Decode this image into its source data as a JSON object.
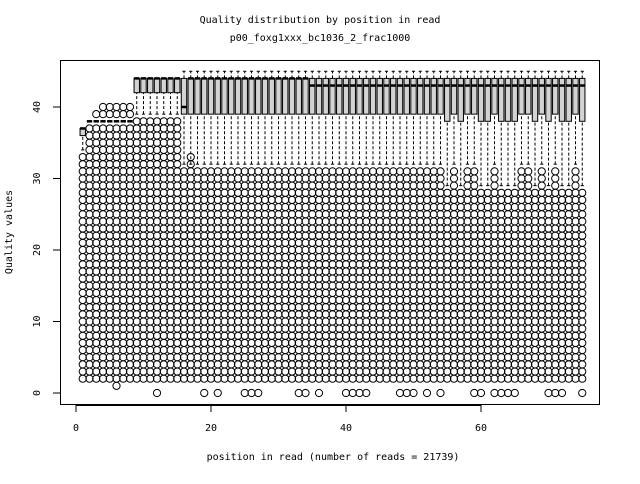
{
  "chart_data": {
    "type": "boxplot",
    "title": "Quality distribution by position in read",
    "subtitle": "p00_foxg1xxx_bc1036_2_frac1000",
    "xlabel": "position in read (number of reads = 21739)",
    "ylabel": "Quality values",
    "xlim": [
      -1.5,
      78.5
    ],
    "ylim": [
      -2,
      46
    ],
    "xticks": [
      0,
      20,
      40,
      60
    ],
    "yticks": [
      0,
      10,
      20,
      30,
      40
    ],
    "grid": false,
    "box_fill": "#d3d3d3",
    "positions_from": 1,
    "boxes_lo_q1_med_q3_hi": [
      [
        34,
        36,
        37,
        37,
        37
      ],
      [
        38,
        38,
        38,
        38,
        38
      ],
      [
        38,
        38,
        38,
        38,
        38
      ],
      [
        38,
        38,
        38,
        38,
        38
      ],
      [
        38,
        38,
        38,
        38,
        38
      ],
      [
        38,
        38,
        38,
        38,
        38
      ],
      [
        38,
        38,
        38,
        38,
        38
      ],
      [
        38,
        38,
        38,
        38,
        38
      ],
      [
        39,
        42,
        44,
        44,
        44
      ],
      [
        39,
        42,
        44,
        44,
        44
      ],
      [
        39,
        42,
        44,
        44,
        44
      ],
      [
        39,
        42,
        44,
        44,
        44
      ],
      [
        39,
        42,
        44,
        44,
        44
      ],
      [
        39,
        42,
        44,
        44,
        44
      ],
      [
        39,
        42,
        44,
        44,
        44
      ],
      [
        32,
        39,
        40,
        44,
        45
      ],
      [
        32,
        39,
        44,
        44,
        45
      ],
      [
        32,
        39,
        44,
        44,
        45
      ],
      [
        32,
        39,
        44,
        44,
        45
      ],
      [
        32,
        39,
        44,
        44,
        45
      ],
      [
        32,
        39,
        44,
        44,
        45
      ],
      [
        32,
        39,
        44,
        44,
        45
      ],
      [
        32,
        39,
        44,
        44,
        45
      ],
      [
        32,
        39,
        44,
        44,
        45
      ],
      [
        32,
        39,
        44,
        44,
        45
      ],
      [
        32,
        39,
        44,
        44,
        45
      ],
      [
        32,
        39,
        44,
        44,
        45
      ],
      [
        32,
        39,
        44,
        44,
        45
      ],
      [
        32,
        39,
        44,
        44,
        45
      ],
      [
        32,
        39,
        44,
        44,
        45
      ],
      [
        32,
        39,
        44,
        44,
        45
      ],
      [
        32,
        39,
        44,
        44,
        45
      ],
      [
        32,
        39,
        44,
        44,
        45
      ],
      [
        32,
        39,
        44,
        44,
        45
      ],
      [
        32,
        39,
        43,
        44,
        45
      ],
      [
        32,
        39,
        43,
        44,
        45
      ],
      [
        32,
        39,
        43,
        44,
        45
      ],
      [
        32,
        39,
        43,
        44,
        45
      ],
      [
        32,
        39,
        43,
        44,
        45
      ],
      [
        32,
        39,
        43,
        44,
        45
      ],
      [
        32,
        39,
        43,
        44,
        45
      ],
      [
        32,
        39,
        43,
        44,
        45
      ],
      [
        32,
        39,
        43,
        44,
        45
      ],
      [
        32,
        39,
        43,
        44,
        45
      ],
      [
        32,
        39,
        43,
        44,
        45
      ],
      [
        32,
        39,
        43,
        44,
        45
      ],
      [
        32,
        39,
        43,
        44,
        45
      ],
      [
        32,
        39,
        43,
        44,
        45
      ],
      [
        32,
        39,
        43,
        44,
        45
      ],
      [
        32,
        39,
        43,
        44,
        45
      ],
      [
        32,
        39,
        43,
        44,
        45
      ],
      [
        32,
        39,
        43,
        44,
        45
      ],
      [
        32,
        39,
        43,
        44,
        45
      ],
      [
        32,
        39,
        43,
        44,
        45
      ],
      [
        29,
        38,
        43,
        44,
        45
      ],
      [
        32,
        39,
        43,
        44,
        45
      ],
      [
        29,
        38,
        43,
        44,
        45
      ],
      [
        32,
        39,
        43,
        44,
        45
      ],
      [
        32,
        39,
        43,
        44,
        45
      ],
      [
        29,
        38,
        43,
        44,
        45
      ],
      [
        29,
        38,
        43,
        44,
        45
      ],
      [
        32,
        39,
        43,
        44,
        45
      ],
      [
        29,
        38,
        43,
        44,
        45
      ],
      [
        29,
        38,
        43,
        44,
        45
      ],
      [
        29,
        38,
        43,
        44,
        45
      ],
      [
        32,
        39,
        43,
        44,
        45
      ],
      [
        32,
        39,
        43,
        44,
        45
      ],
      [
        29,
        38,
        43,
        44,
        45
      ],
      [
        32,
        39,
        43,
        44,
        45
      ],
      [
        29,
        38,
        43,
        44,
        45
      ],
      [
        32,
        39,
        43,
        44,
        45
      ],
      [
        29,
        38,
        43,
        44,
        45
      ],
      [
        29,
        38,
        43,
        44,
        45
      ],
      [
        32,
        39,
        43,
        44,
        45
      ],
      [
        29,
        38,
        43,
        44,
        45
      ]
    ],
    "outlier_span_min_max": [
      [
        2,
        33
      ],
      [
        2,
        37
      ],
      [
        2,
        37
      ],
      [
        2,
        37
      ],
      [
        2,
        37
      ],
      [
        2,
        37
      ],
      [
        2,
        37
      ],
      [
        2,
        37
      ],
      [
        2,
        38
      ],
      [
        2,
        38
      ],
      [
        2,
        38
      ],
      [
        2,
        38
      ],
      [
        2,
        38
      ],
      [
        2,
        38
      ],
      [
        2,
        38
      ],
      [
        2,
        31
      ],
      [
        2,
        31
      ],
      [
        2,
        31
      ],
      [
        2,
        31
      ],
      [
        2,
        31
      ],
      [
        2,
        31
      ],
      [
        2,
        31
      ],
      [
        2,
        31
      ],
      [
        2,
        31
      ],
      [
        2,
        31
      ],
      [
        2,
        31
      ],
      [
        2,
        31
      ],
      [
        2,
        31
      ],
      [
        2,
        31
      ],
      [
        2,
        31
      ],
      [
        2,
        31
      ],
      [
        2,
        31
      ],
      [
        2,
        31
      ],
      [
        2,
        31
      ],
      [
        2,
        31
      ],
      [
        2,
        31
      ],
      [
        2,
        31
      ],
      [
        2,
        31
      ],
      [
        2,
        31
      ],
      [
        2,
        31
      ],
      [
        2,
        31
      ],
      [
        2,
        31
      ],
      [
        2,
        31
      ],
      [
        2,
        31
      ],
      [
        2,
        31
      ],
      [
        2,
        31
      ],
      [
        2,
        31
      ],
      [
        2,
        31
      ],
      [
        2,
        31
      ],
      [
        2,
        31
      ],
      [
        2,
        31
      ],
      [
        2,
        31
      ],
      [
        2,
        31
      ],
      [
        2,
        31
      ],
      [
        2,
        28
      ],
      [
        2,
        31
      ],
      [
        2,
        28
      ],
      [
        2,
        31
      ],
      [
        2,
        31
      ],
      [
        2,
        28
      ],
      [
        2,
        28
      ],
      [
        2,
        31
      ],
      [
        2,
        28
      ],
      [
        2,
        28
      ],
      [
        2,
        28
      ],
      [
        2,
        31
      ],
      [
        2,
        31
      ],
      [
        2,
        28
      ],
      [
        2,
        31
      ],
      [
        2,
        28
      ],
      [
        2,
        31
      ],
      [
        2,
        28
      ],
      [
        2,
        28
      ],
      [
        2,
        31
      ],
      [
        2,
        28
      ]
    ],
    "extra_outliers": [
      {
        "value": 0,
        "positions": [
          12,
          19,
          21,
          25,
          26,
          27,
          33,
          34,
          36,
          40,
          41,
          42,
          43,
          48,
          49,
          50,
          52,
          54,
          59,
          60,
          62,
          63,
          64,
          65,
          70,
          71,
          72,
          75
        ]
      },
      {
        "value": 1,
        "positions": [
          6
        ]
      },
      {
        "value": 39,
        "positions": [
          3,
          4,
          5,
          6,
          7,
          8
        ]
      },
      {
        "value": 40,
        "positions": [
          4,
          5,
          6,
          7,
          8
        ]
      },
      {
        "value": 33,
        "positions": [
          17
        ]
      },
      {
        "value": 32,
        "positions": [
          17
        ]
      }
    ]
  }
}
